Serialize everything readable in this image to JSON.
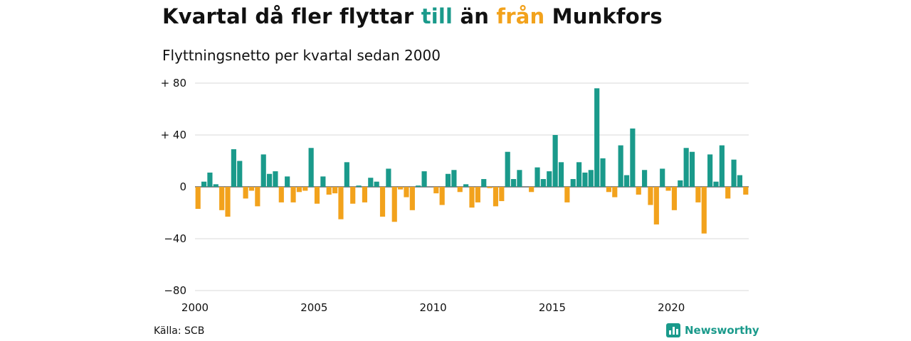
{
  "title": {
    "part1": "Kvartal då fler flyttar ",
    "till": "till",
    "part2": " än ",
    "fran": "från",
    "part3": " Munkfors"
  },
  "subtitle": "Flyttningsnetto per kvartal sedan 2000",
  "source": "Källa: SCB",
  "brand": "Newsworthy",
  "colors": {
    "positive": "#1a9a8b",
    "negative": "#f2a21c",
    "grid": "#d9d9d9",
    "text": "#111111"
  },
  "chart_data": {
    "type": "bar",
    "x_start_year": 2000,
    "periods_per_year": 4,
    "values": [
      -17,
      4,
      11,
      2,
      -18,
      -23,
      29,
      20,
      -9,
      -3,
      -15,
      25,
      10,
      12,
      -12,
      8,
      -12,
      -4,
      -3,
      30,
      -13,
      8,
      -6,
      -5,
      -25,
      19,
      -13,
      1,
      -12,
      7,
      4,
      -23,
      14,
      -27,
      -2,
      -8,
      -18,
      1,
      12,
      0,
      -5,
      -14,
      10,
      13,
      -4,
      2,
      -16,
      -12,
      6,
      -1,
      -15,
      -11,
      27,
      6,
      13,
      0,
      -4,
      15,
      6,
      12,
      40,
      19,
      -12,
      6,
      19,
      11,
      13,
      76,
      22,
      -4,
      -8,
      32,
      9,
      45,
      -6,
      13,
      -14,
      -29,
      14,
      -3,
      -18,
      5,
      30,
      27,
      -12,
      -36,
      25,
      4,
      32,
      -9,
      21,
      9,
      -6
    ],
    "xticks": [
      "2000",
      "2005",
      "2010",
      "2015",
      "2020"
    ],
    "ytick_labels": [
      "+ 80",
      "+ 40",
      "0",
      "−40",
      "−80"
    ],
    "yticks": [
      80,
      40,
      0,
      -40,
      -80
    ],
    "ylim": [
      -80,
      80
    ],
    "grid": true
  }
}
